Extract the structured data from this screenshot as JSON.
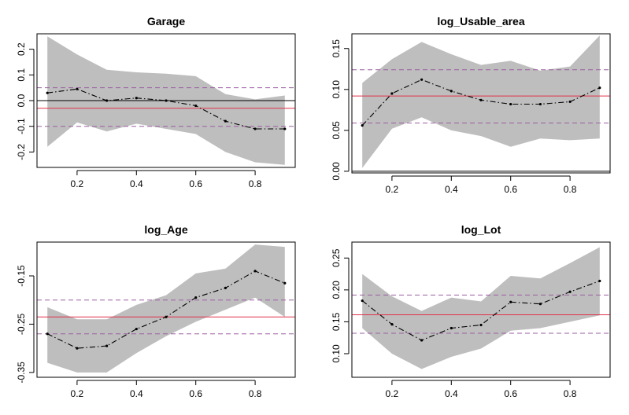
{
  "colors": {
    "band": "#bebebe",
    "estimate_line": "#000000",
    "ols_line": "#e0304a",
    "ci_line": "#9a5fa0"
  },
  "chart_data": [
    {
      "type": "line",
      "title": "Garage",
      "x": [
        0.1,
        0.2,
        0.3,
        0.4,
        0.5,
        0.6,
        0.7,
        0.8,
        0.9
      ],
      "estimate": [
        0.03,
        0.045,
        0.0,
        0.01,
        0.0,
        -0.02,
        -0.08,
        -0.11,
        -0.11
      ],
      "band_upper": [
        0.25,
        0.18,
        0.12,
        0.11,
        0.105,
        0.095,
        0.025,
        0.005,
        0.02
      ],
      "band_lower": [
        -0.18,
        -0.085,
        -0.12,
        -0.09,
        -0.11,
        -0.13,
        -0.2,
        -0.24,
        -0.25
      ],
      "ols": -0.03,
      "ols_ci": [
        -0.1,
        0.05
      ],
      "zero_line": 0,
      "xlim": [
        0.065,
        0.935
      ],
      "ylim": [
        -0.26,
        0.26
      ],
      "xticks": [
        0.2,
        0.4,
        0.6,
        0.8
      ],
      "xtick_labels": [
        "0.2",
        "0.4",
        "0.6",
        "0.8"
      ],
      "yticks": [
        -0.2,
        -0.1,
        0.0,
        0.1,
        0.2
      ],
      "ytick_labels": [
        "-0.2",
        "-0.1",
        "0.0",
        "0.1",
        "0.2"
      ]
    },
    {
      "type": "line",
      "title": "log_Usable_area",
      "x": [
        0.1,
        0.2,
        0.3,
        0.4,
        0.5,
        0.6,
        0.7,
        0.8,
        0.9
      ],
      "estimate": [
        0.056,
        0.095,
        0.112,
        0.098,
        0.087,
        0.082,
        0.082,
        0.085,
        0.102
      ],
      "band_upper": [
        0.108,
        0.137,
        0.158,
        0.143,
        0.13,
        0.135,
        0.123,
        0.128,
        0.166
      ],
      "band_lower": [
        0.004,
        0.052,
        0.066,
        0.05,
        0.043,
        0.03,
        0.04,
        0.038,
        0.04
      ],
      "ols": 0.092,
      "ols_ci": [
        0.059,
        0.124
      ],
      "zero_line": 0,
      "xlim": [
        0.065,
        0.935
      ],
      "ylim": [
        -0.002,
        0.168
      ],
      "xticks": [
        0.2,
        0.4,
        0.6,
        0.8
      ],
      "xtick_labels": [
        "0.2",
        "0.4",
        "0.6",
        "0.8"
      ],
      "yticks": [
        0.0,
        0.05,
        0.1,
        0.15
      ],
      "ytick_labels": [
        "0.00",
        "0.05",
        "0.10",
        "0.15"
      ]
    },
    {
      "type": "line",
      "title": "log_Age",
      "x": [
        0.1,
        0.2,
        0.3,
        0.4,
        0.5,
        0.6,
        0.7,
        0.8,
        0.9
      ],
      "estimate": [
        -0.27,
        -0.3,
        -0.295,
        -0.26,
        -0.235,
        -0.195,
        -0.175,
        -0.14,
        -0.165
      ],
      "band_upper": [
        -0.215,
        -0.24,
        -0.24,
        -0.21,
        -0.19,
        -0.145,
        -0.135,
        -0.085,
        -0.09
      ],
      "band_lower": [
        -0.33,
        -0.35,
        -0.35,
        -0.31,
        -0.275,
        -0.245,
        -0.22,
        -0.195,
        -0.235
      ],
      "ols": -0.235,
      "ols_ci": [
        -0.27,
        -0.2
      ],
      "zero_line": null,
      "xlim": [
        0.065,
        0.935
      ],
      "ylim": [
        -0.36,
        -0.08
      ],
      "xticks": [
        0.2,
        0.4,
        0.6,
        0.8
      ],
      "xtick_labels": [
        "0.2",
        "0.4",
        "0.6",
        "0.8"
      ],
      "yticks": [
        -0.35,
        -0.25,
        -0.15
      ],
      "ytick_labels": [
        "-0.35",
        "-0.25",
        "-0.15"
      ]
    },
    {
      "type": "line",
      "title": "log_Lot",
      "x": [
        0.1,
        0.2,
        0.3,
        0.4,
        0.5,
        0.6,
        0.7,
        0.8,
        0.9
      ],
      "estimate": [
        0.183,
        0.146,
        0.121,
        0.14,
        0.145,
        0.181,
        0.178,
        0.197,
        0.214
      ],
      "band_upper": [
        0.225,
        0.19,
        0.167,
        0.188,
        0.182,
        0.222,
        0.218,
        0.242,
        0.267
      ],
      "band_lower": [
        0.14,
        0.1,
        0.076,
        0.095,
        0.108,
        0.136,
        0.14,
        0.15,
        0.16
      ],
      "ols": 0.161,
      "ols_ci": [
        0.132,
        0.192
      ],
      "zero_line": null,
      "xlim": [
        0.065,
        0.935
      ],
      "ylim": [
        0.063,
        0.275
      ],
      "xticks": [
        0.2,
        0.4,
        0.6,
        0.8
      ],
      "xtick_labels": [
        "0.2",
        "0.4",
        "0.6",
        "0.8"
      ],
      "yticks": [
        0.1,
        0.15,
        0.2,
        0.25
      ],
      "ytick_labels": [
        "0.10",
        "0.15",
        "0.20",
        "0.25"
      ]
    }
  ]
}
